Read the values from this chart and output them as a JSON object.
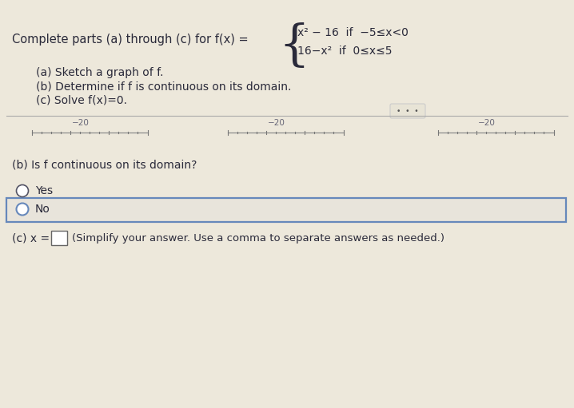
{
  "bg_color": "#ede8db",
  "font_color": "#2a2a3a",
  "title_text": "Complete parts (a) through (c) for f(x) =",
  "brace": "{",
  "piece1_top": "x² − 16  if  −5≤x<0",
  "piece1_bot": "16−x²  if  0≤x≤5",
  "item_a": "(a) Sketch a graph of f.",
  "item_b": "(b) Determine if f is continuous on its domain.",
  "item_c": "(c) Solve f(x)=0.",
  "ruler_label": "−20",
  "dots_text": "•  •  •",
  "section_b_label": "(b) Is f continuous on its domain?",
  "yes_label": "Yes",
  "no_label": "No",
  "section_c_label": "(c) x =",
  "section_c_suffix": "(Simplify your answer. Use a comma to separate answers as needed.)",
  "sep_line_color": "#aaaaaa",
  "ruler_color": "#888888",
  "ruler_tick_color": "#777777",
  "dots_box_color": "#cccccc",
  "dots_box_bg": "#e8e4d6",
  "radio_edge_color": "#555566",
  "radio_fill": "#ffffff",
  "no_box_edge": "#6688bb",
  "no_box_fill": "#e8e4db",
  "ans_box_edge": "#666666",
  "ans_box_fill": "#ffffff",
  "title_fontsize": 10.5,
  "body_fontsize": 10.0,
  "sub_fontsize": 9.5,
  "brace_fontsize": 44,
  "piece_fontsize": 10.0,
  "ruler_fontsize": 7.5
}
